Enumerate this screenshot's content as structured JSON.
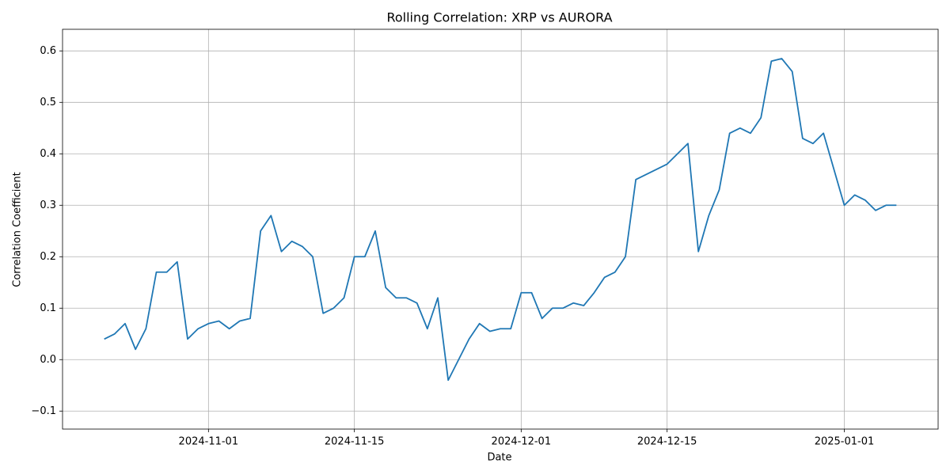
{
  "chart_data": {
    "type": "line",
    "title": "Rolling Correlation: XRP vs AURORA",
    "x_label": "Date",
    "y_label": "Correlation Coefficient",
    "x": [
      "2024-10-22",
      "2024-10-23",
      "2024-10-24",
      "2024-10-25",
      "2024-10-26",
      "2024-10-27",
      "2024-10-28",
      "2024-10-29",
      "2024-10-30",
      "2024-10-31",
      "2024-11-01",
      "2024-11-02",
      "2024-11-03",
      "2024-11-04",
      "2024-11-05",
      "2024-11-06",
      "2024-11-07",
      "2024-11-08",
      "2024-11-09",
      "2024-11-10",
      "2024-11-11",
      "2024-11-12",
      "2024-11-13",
      "2024-11-14",
      "2024-11-15",
      "2024-11-16",
      "2024-11-17",
      "2024-11-18",
      "2024-11-19",
      "2024-11-20",
      "2024-11-21",
      "2024-11-22",
      "2024-11-23",
      "2024-11-24",
      "2024-11-25",
      "2024-11-26",
      "2024-11-27",
      "2024-11-28",
      "2024-11-29",
      "2024-11-30",
      "2024-12-01",
      "2024-12-02",
      "2024-12-03",
      "2024-12-04",
      "2024-12-05",
      "2024-12-06",
      "2024-12-07",
      "2024-12-08",
      "2024-12-09",
      "2024-12-10",
      "2024-12-11",
      "2024-12-12",
      "2024-12-13",
      "2024-12-14",
      "2024-12-15",
      "2024-12-16",
      "2024-12-17",
      "2024-12-18",
      "2024-12-19",
      "2024-12-20",
      "2024-12-21",
      "2024-12-22",
      "2024-12-23",
      "2024-12-24",
      "2024-12-25",
      "2024-12-26",
      "2024-12-27",
      "2024-12-28",
      "2024-12-29",
      "2024-12-30",
      "2024-12-31",
      "2025-01-01",
      "2025-01-02",
      "2025-01-03",
      "2025-01-04",
      "2025-01-05",
      "2025-01-06"
    ],
    "series": [
      {
        "name": "XRP vs AURORA",
        "color": "#1f77b4",
        "values": [
          0.04,
          0.05,
          0.07,
          0.02,
          0.06,
          0.17,
          0.17,
          0.19,
          0.04,
          0.06,
          0.07,
          0.075,
          0.06,
          0.075,
          0.08,
          0.25,
          0.28,
          0.21,
          0.23,
          0.22,
          0.2,
          0.09,
          0.1,
          0.12,
          0.2,
          0.2,
          0.25,
          0.14,
          0.12,
          0.12,
          0.11,
          0.06,
          0.12,
          -0.04,
          0.0,
          0.04,
          0.07,
          0.055,
          0.06,
          0.06,
          0.13,
          0.13,
          0.08,
          0.1,
          0.1,
          0.11,
          0.105,
          0.13,
          0.16,
          0.17,
          0.2,
          0.35,
          0.36,
          0.37,
          0.38,
          0.4,
          0.42,
          0.21,
          0.28,
          0.33,
          0.44,
          0.45,
          0.44,
          0.47,
          0.58,
          0.585,
          0.56,
          0.43,
          0.42,
          0.44,
          0.37,
          0.3,
          0.32,
          0.31,
          0.29,
          0.3,
          0.3
        ]
      }
    ],
    "xlim": [
      "2024-10-18",
      "2025-01-10"
    ],
    "xticks": [
      "2024-11-01",
      "2024-11-15",
      "2024-12-01",
      "2024-12-15",
      "2025-01-01"
    ],
    "ylim": [
      -0.135,
      0.642
    ],
    "yticks": [
      {
        "value": -0.1,
        "label": "−0.1"
      },
      {
        "value": 0,
        "label": "0.0"
      },
      0.1,
      0.2,
      0.3,
      0.4,
      0.5,
      0.6
    ],
    "grid": true
  }
}
